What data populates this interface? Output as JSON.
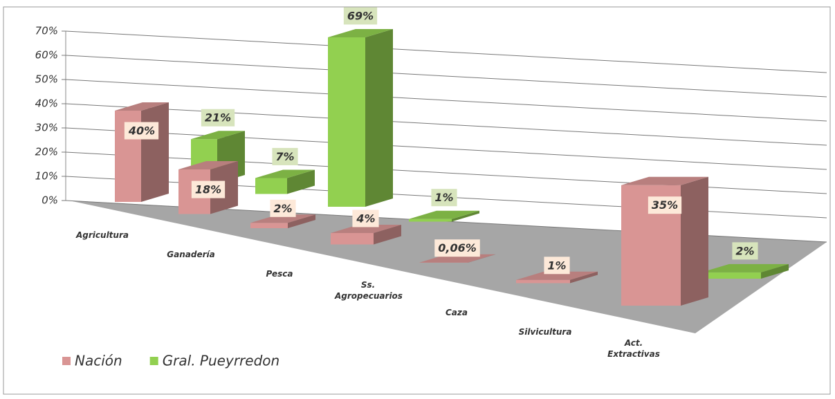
{
  "chart_data": {
    "type": "bar3d",
    "categories": [
      "Agricultura",
      "Ganadería",
      "Pesca",
      "Ss. Agropecuarios",
      "Caza",
      "Silvicultura",
      "Act. Extractivas"
    ],
    "series": [
      {
        "name": "Nación",
        "color": "#d99594",
        "values": [
          40,
          18,
          2,
          4,
          0.06,
          1,
          35
        ],
        "value_labels": [
          "40%",
          "18%",
          "2%",
          "4%",
          "0,06%",
          "1%",
          "35%"
        ]
      },
      {
        "name": "Gral. Pueyrredon",
        "color": "#92d050",
        "values": [
          21,
          7,
          69,
          1,
          null,
          null,
          2
        ],
        "value_labels": [
          "21%",
          "7%",
          "69%",
          "1%",
          null,
          null,
          "2%"
        ]
      }
    ],
    "ylim": [
      0,
      70
    ],
    "yticks": [
      {
        "value": 0,
        "label": "0%"
      },
      {
        "value": 10,
        "label": "10%"
      },
      {
        "value": 20,
        "label": "20%"
      },
      {
        "value": 30,
        "label": "30%"
      },
      {
        "value": 40,
        "label": "40%"
      },
      {
        "value": 50,
        "label": "50%"
      },
      {
        "value": 60,
        "label": "60%"
      },
      {
        "value": 70,
        "label": "70%"
      }
    ],
    "grid": true,
    "legend": "bottom-left"
  }
}
